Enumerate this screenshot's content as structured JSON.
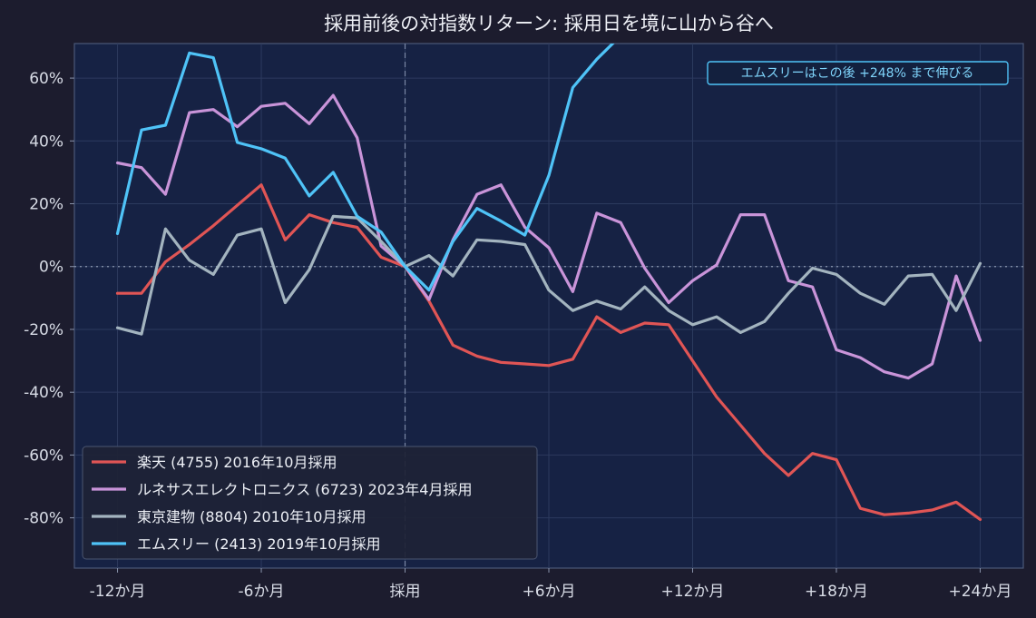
{
  "chart_data": {
    "type": "line",
    "title": "採用前後の対指数リターン: 採用日を境に山から谷へ",
    "xlabel": "",
    "ylabel": "",
    "x_ticks": [
      {
        "x": -12,
        "label": "-12か月"
      },
      {
        "x": -6,
        "label": "-6か月"
      },
      {
        "x": 0,
        "label": "採用"
      },
      {
        "x": 6,
        "label": "+6か月"
      },
      {
        "x": 12,
        "label": "+12か月"
      },
      {
        "x": 18,
        "label": "+18か月"
      },
      {
        "x": 24,
        "label": "+24か月"
      }
    ],
    "y_ticks": [
      {
        "y": 60,
        "label": "60%"
      },
      {
        "y": 40,
        "label": "40%"
      },
      {
        "y": 20,
        "label": "20%"
      },
      {
        "y": 0,
        "label": "0%"
      },
      {
        "y": -20,
        "label": "-20%"
      },
      {
        "y": -40,
        "label": "-40%"
      },
      {
        "y": -60,
        "label": "-60%"
      },
      {
        "y": -80,
        "label": "-80%"
      }
    ],
    "xlim": [
      -13.8,
      25.8
    ],
    "ylim": [
      -96,
      71
    ],
    "grid": true,
    "legend_position": "lower-left",
    "annotation": "エムスリーはこの後 +248% まで伸びる",
    "series": [
      {
        "name": "楽天 (4755) 2016年10月採用",
        "color": "#e05555",
        "x": [
          -12,
          -11,
          -10,
          -9,
          -8,
          -7,
          -6,
          -5,
          -4,
          -3,
          -2,
          -1,
          0,
          1,
          2,
          3,
          4,
          5,
          6,
          7,
          8,
          9,
          10,
          11,
          12,
          13,
          14,
          15,
          16,
          17,
          18,
          19,
          20,
          21,
          22,
          23,
          24
        ],
        "y": [
          -8.5,
          -8.5,
          1.5,
          7,
          13,
          19.5,
          26,
          8.5,
          16.5,
          14,
          12.5,
          3,
          0,
          -11,
          -25,
          -28.5,
          -30.5,
          -31,
          -31.5,
          -29.5,
          -16,
          -21,
          -18,
          -18.5,
          -30,
          -41.5,
          -50.5,
          -59.5,
          -66.5,
          -59.5,
          -61.5,
          -77,
          -79,
          -78.5,
          -77.5,
          -75,
          -80.5
        ]
      },
      {
        "name": "ルネサスエレクトロニクス (6723) 2023年4月採用",
        "color": "#c994d9",
        "x": [
          -12,
          -11,
          -10,
          -9,
          -8,
          -7,
          -6,
          -5,
          -4,
          -3,
          -2,
          -1,
          0,
          1,
          2,
          3,
          4,
          5,
          6,
          7,
          8,
          9,
          10,
          11,
          12,
          13,
          14,
          15,
          16,
          17,
          18,
          19,
          20,
          21,
          22,
          23,
          24
        ],
        "y": [
          33,
          31.5,
          23,
          49,
          50,
          44.5,
          51,
          52,
          45.5,
          54.5,
          41,
          6.5,
          0,
          -10.5,
          8.5,
          23,
          26,
          12.5,
          6,
          -8,
          17,
          14,
          -0.5,
          -11.5,
          -4.5,
          0.5,
          16.5,
          16.5,
          -4.5,
          -6.5,
          -26.5,
          -29,
          -33.5,
          -35.5,
          -31,
          -3,
          -23.5
        ]
      },
      {
        "name": "東京建物 (8804) 2010年10月採用",
        "color": "#a3b4bf",
        "x": [
          -12,
          -11,
          -10,
          -9,
          -8,
          -7,
          -6,
          -5,
          -4,
          -3,
          -2,
          -1,
          0,
          1,
          2,
          3,
          4,
          5,
          6,
          7,
          8,
          9,
          10,
          11,
          12,
          13,
          14,
          15,
          16,
          17,
          18,
          19,
          20,
          21,
          22,
          23,
          24
        ],
        "y": [
          -19.5,
          -21.5,
          12,
          2,
          -2.5,
          10,
          12,
          -11.5,
          -1,
          16,
          15.5,
          8,
          0,
          3.5,
          -3,
          8.5,
          8,
          7,
          -7.5,
          -14,
          -11,
          -13.5,
          -6.5,
          -14,
          -18.5,
          -16,
          -21,
          -17.5,
          -8.5,
          -0.5,
          -2.5,
          -8.5,
          -12,
          -3,
          -2.5,
          -14,
          1
        ]
      },
      {
        "name": "エムスリー (2413) 2019年10月採用",
        "color": "#4fc3f7",
        "x": [
          -12,
          -11,
          -10,
          -9,
          -8,
          -7,
          -6,
          -5,
          -4,
          -3,
          -2,
          -1,
          0,
          1,
          2,
          3,
          4,
          5,
          6,
          7,
          8,
          9
        ],
        "y": [
          10.5,
          43.5,
          45,
          68,
          66.5,
          39.5,
          37.5,
          34.5,
          22.5,
          30,
          16,
          11,
          0,
          -7.5,
          8,
          18.5,
          14.5,
          10,
          29,
          57,
          66,
          73.5
        ]
      }
    ]
  }
}
